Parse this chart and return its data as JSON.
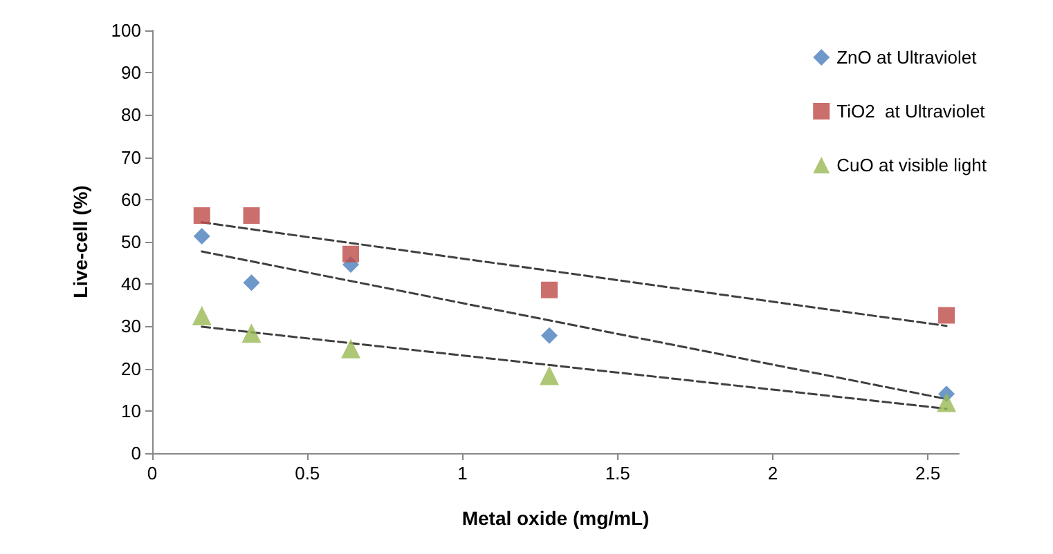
{
  "chart_data": {
    "type": "scatter",
    "xlabel": "Metal oxide (mg/mL)",
    "ylabel": "Live-cell (%)",
    "xlim": [
      0,
      2.6
    ],
    "xticks": [
      0,
      0.5,
      1,
      1.5,
      2,
      2.5
    ],
    "ylim": [
      0,
      100
    ],
    "yticks": [
      0,
      10,
      20,
      30,
      40,
      50,
      60,
      70,
      80,
      90,
      100
    ],
    "grid": false,
    "legend": "top right",
    "series": [
      {
        "name": "ZnO at Ultraviolet",
        "color": "#4a7ebb",
        "marker": "diamond",
        "x": [
          0.16,
          0.32,
          0.64,
          1.28,
          2.56
        ],
        "values": [
          51.3,
          40.3,
          44.6,
          27.8,
          14
        ]
      },
      {
        "name": "TiO2  at Ultraviolet",
        "color": "#be4b48",
        "marker": "square",
        "x": [
          0.16,
          0.32,
          0.64,
          1.28,
          2.56
        ],
        "values": [
          56.2,
          56.2,
          47.1,
          38.6,
          32.6
        ]
      },
      {
        "name": "CuO at visible light",
        "color": "#98b954",
        "marker": "triangle",
        "x": [
          0.16,
          0.32,
          0.64,
          1.28,
          2.56
        ],
        "values": [
          32.5,
          28.4,
          24.7,
          18.4,
          12
        ]
      },
      {
        "type": "line",
        "color": "#404040",
        "line_style": "dashed",
        "marker": "none",
        "x": [
          0.16,
          2.56
        ],
        "values": [
          47.7,
          12.8
        ]
      },
      {
        "type": "line",
        "color": "#404040",
        "line_style": "dashed",
        "marker": "none",
        "x": [
          0.16,
          2.56
        ],
        "values": [
          54.6,
          30.1
        ]
      },
      {
        "type": "line",
        "color": "#404040",
        "line_style": "dashed",
        "marker": "none",
        "x": [
          0.16,
          2.56
        ],
        "values": [
          29.9,
          10.5
        ]
      }
    ]
  }
}
